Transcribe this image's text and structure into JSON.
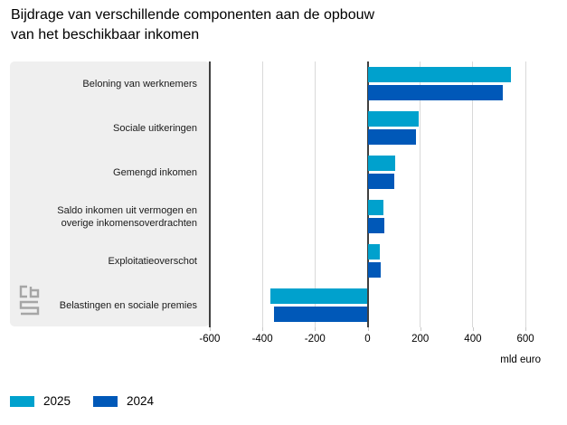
{
  "header": {
    "line1": "Bijdrage van verschillende componenten aan de opbouw",
    "line2": "van het beschikbaar inkomen"
  },
  "x_axis": {
    "ticks": [
      -600,
      -400,
      -200,
      0,
      200,
      400,
      600
    ],
    "unit_label": "mld euro"
  },
  "legend": {
    "items": [
      {
        "label": "2025",
        "color": "#00a1cd"
      },
      {
        "label": "2024",
        "color": "#0058b8"
      }
    ]
  },
  "logo": {
    "name": "cbs"
  },
  "colors": {
    "series_2025": "#00a1cd",
    "series_2024": "#0058b8",
    "panel_bg": "#efefef",
    "gridline": "#d9d9d9",
    "axis_line": "#404040"
  },
  "chart_data": {
    "type": "bar",
    "orientation": "horizontal",
    "title": "Bijdrage van verschillende componenten aan de opbouw van het beschikbaar inkomen",
    "categories": [
      "Beloning van werknemers",
      "Sociale uitkeringen",
      "Gemengd inkomen",
      "Saldo inkomen uit vermogen en overige inkomensoverdrachten",
      "Exploitatieoverschot",
      "Belastingen en sociale premies"
    ],
    "series": [
      {
        "name": "2025",
        "color": "#00a1cd",
        "values": [
          545,
          195,
          105,
          60,
          45,
          -370
        ]
      },
      {
        "name": "2024",
        "color": "#0058b8",
        "values": [
          515,
          185,
          100,
          65,
          50,
          -355
        ]
      }
    ],
    "xlabel": "mld euro",
    "xlim": [
      -600,
      640
    ],
    "x_ticks": [
      -600,
      -400,
      -200,
      0,
      200,
      400,
      600
    ],
    "grid": true,
    "legend_position": "bottom-left"
  }
}
